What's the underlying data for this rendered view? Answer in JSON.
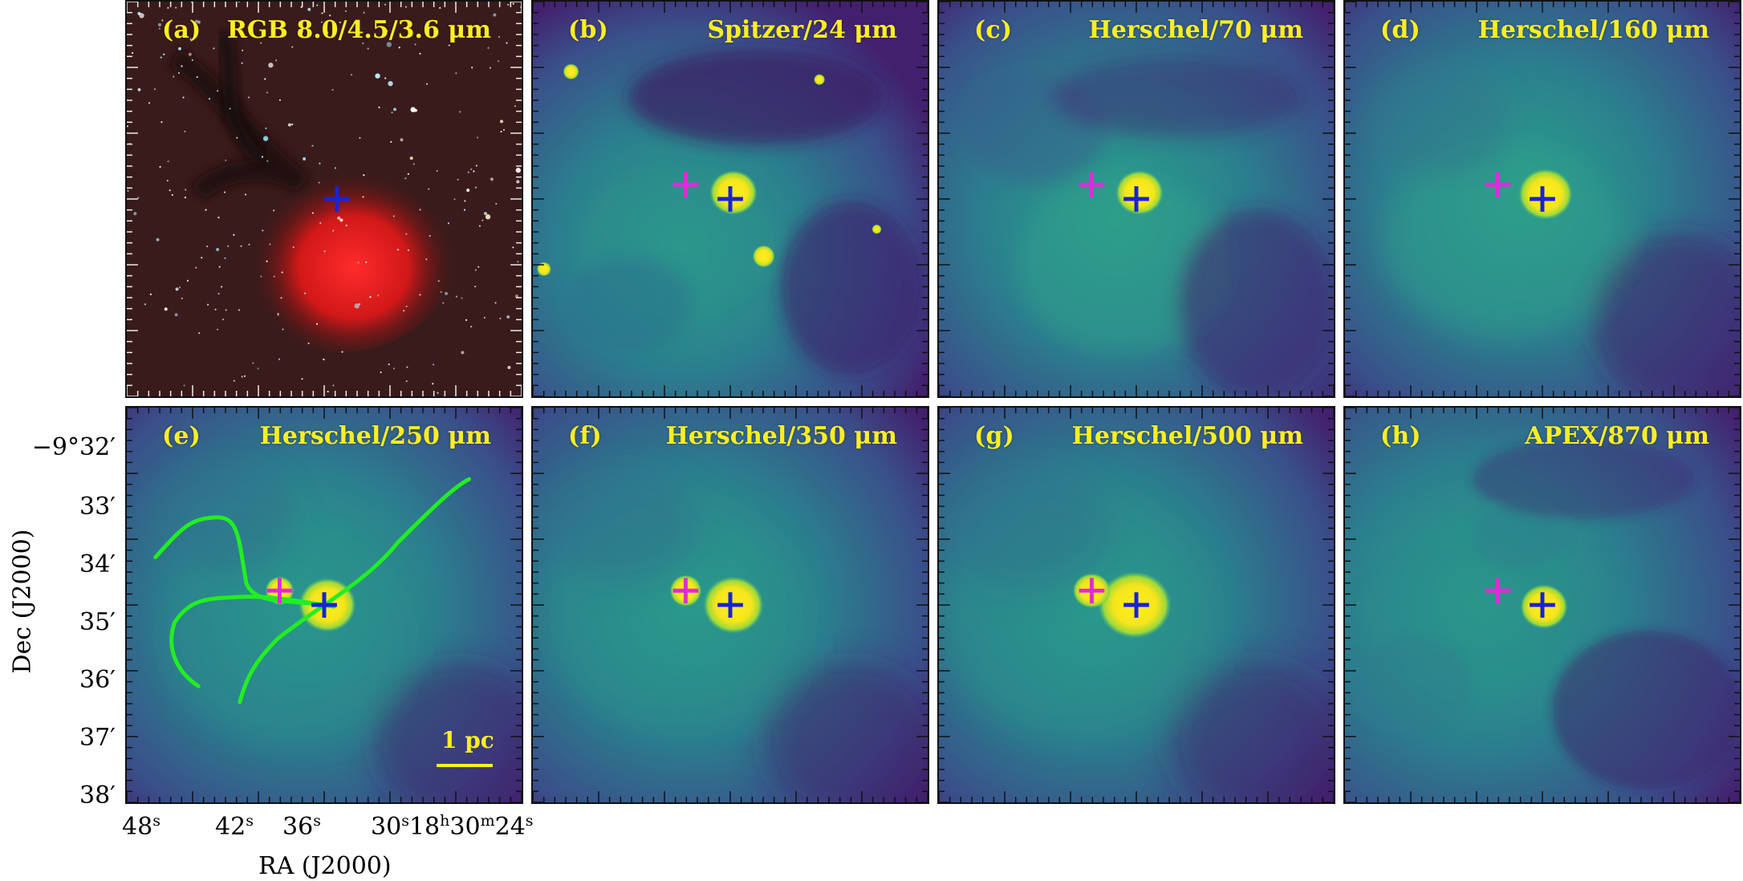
{
  "panels": [
    {
      "tag": "(a)",
      "title": "RGB 8.0/4.5/3.6 μm"
    },
    {
      "tag": "(b)",
      "title": "Spitzer/24 μm"
    },
    {
      "tag": "(c)",
      "title": "Herschel/70 μm"
    },
    {
      "tag": "(d)",
      "title": "Herschel/160 μm"
    },
    {
      "tag": "(e)",
      "title": "Herschel/250 μm"
    },
    {
      "tag": "(f)",
      "title": "Herschel/350 μm"
    },
    {
      "tag": "(g)",
      "title": "Herschel/500 μm"
    },
    {
      "tag": "(h)",
      "title": "APEX/870 μm"
    }
  ],
  "axes": {
    "ylabel": "Dec (J2000)",
    "xlabel": "RA (J2000)",
    "yticks": [
      "−9°32′",
      "33′",
      "34′",
      "35′",
      "36′",
      "37′",
      "38′"
    ],
    "xticks": [
      "48",
      "42",
      "36",
      "30",
      "18",
      "30",
      "24"
    ],
    "xtick_units": [
      "s",
      "s",
      "s",
      "s",
      "h",
      "m",
      "s"
    ]
  },
  "scalebar": {
    "label": "1 pc"
  },
  "colors": {
    "marker_primary": "#1a22d8",
    "marker_secondary": "#e02ad8",
    "filament": "#22ee22",
    "text_accent": "#ffee22"
  }
}
